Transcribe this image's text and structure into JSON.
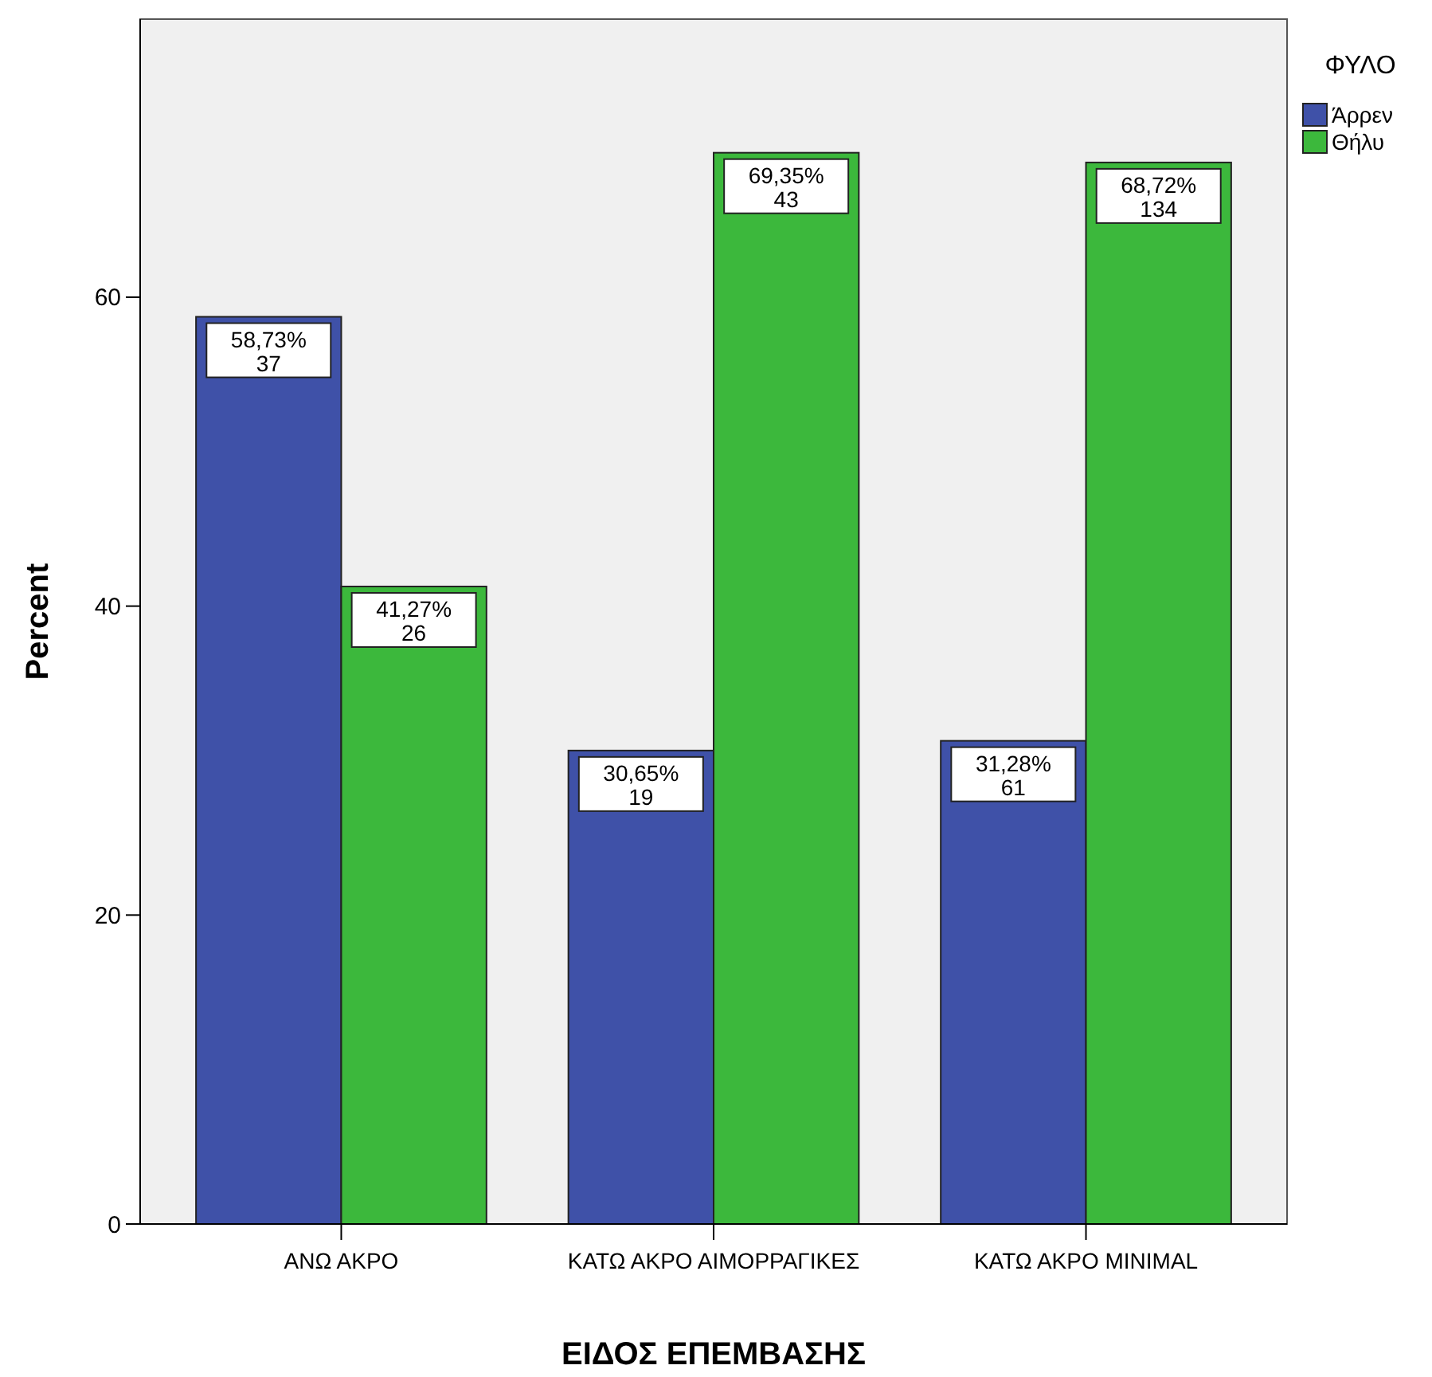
{
  "chart_data": {
    "type": "bar",
    "xlabel": "ΕΙΔΟΣ ΕΠΕΜΒΑΣΗΣ",
    "ylabel": "Percent",
    "legend_title": "ΦΥΛΟ",
    "categories": [
      "ΑΝΩ ΑΚΡΟ",
      "ΚΑΤΩ ΑΚΡΟ ΑΙΜΟΡΡΑΓΙΚΕΣ",
      "ΚΑΤΩ ΑΚΡΟ MINIMAL"
    ],
    "series": [
      {
        "name": "Άρρεν",
        "color": "#3f51a8",
        "values": [
          58.73,
          30.65,
          31.28
        ],
        "value_labels": [
          "58,73%\n37",
          "30,65%\n19",
          "31,28%\n61"
        ]
      },
      {
        "name": "Θήλυ",
        "color": "#3cb83c",
        "values": [
          41.27,
          69.35,
          68.72
        ],
        "value_labels": [
          "41,27%\n26",
          "69,35%\n43",
          "68,72%\n134"
        ]
      }
    ],
    "ylim": [
      0,
      78
    ],
    "yticks": [
      0,
      20,
      40,
      60
    ],
    "grid": false,
    "legend": "top right"
  }
}
